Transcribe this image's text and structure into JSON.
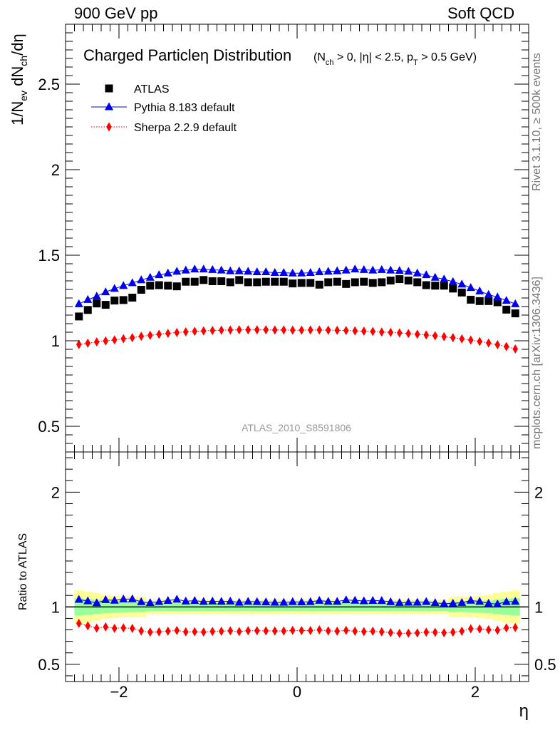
{
  "header": {
    "left": "900 GeV pp",
    "right": "Soft QCD"
  },
  "side_labels": {
    "rivet": "Rivet 3.1.10, ≥ 500k events",
    "source": "mcplots.cern.ch [arXiv:1306.3436]"
  },
  "colors": {
    "atlas": "#000000",
    "pythia": "#0000ee",
    "sherpa": "#ff0000",
    "band_inner": "#99ff99",
    "band_outer": "#ffff99",
    "watermark": "#999999"
  },
  "chart_data": {
    "type": "scatter",
    "title": "Charged Particleη Distribution",
    "subtitle_parts": [
      "(N",
      "ch",
      " > 0, |η| < 2.5, p",
      "T",
      " > 0.5 GeV)"
    ],
    "watermark": "ATLAS_2010_S8591806",
    "xlabel": "η",
    "ylabel_parts": [
      "1/N",
      "ev",
      " dN",
      "ch",
      "/dη"
    ],
    "ratio_ylabel": "Ratio to ATLAS",
    "xlim": [
      -2.6,
      2.6
    ],
    "ylim": [
      0.35,
      2.85
    ],
    "ratio_ylim": [
      0.35,
      2.35
    ],
    "x_ticks": [
      -2,
      0,
      2
    ],
    "x_tick_labels": [
      "−2",
      "0",
      "2"
    ],
    "y_ticks": [
      0.5,
      1,
      1.5,
      2,
      2.5
    ],
    "y_tick_labels": [
      "0.5",
      "1",
      "1.5",
      "2",
      "2.5"
    ],
    "ratio_ticks": [
      0.5,
      1,
      2
    ],
    "ratio_tick_labels": [
      "0.5",
      "1",
      "2"
    ],
    "x": [
      -2.45,
      -2.35,
      -2.25,
      -2.15,
      -2.05,
      -1.95,
      -1.85,
      -1.75,
      -1.65,
      -1.55,
      -1.45,
      -1.35,
      -1.25,
      -1.15,
      -1.05,
      -0.95,
      -0.85,
      -0.75,
      -0.65,
      -0.55,
      -0.45,
      -0.35,
      -0.25,
      -0.15,
      -0.05,
      0.05,
      0.15,
      0.25,
      0.35,
      0.45,
      0.55,
      0.65,
      0.75,
      0.85,
      0.95,
      1.05,
      1.15,
      1.25,
      1.35,
      1.45,
      1.55,
      1.65,
      1.75,
      1.85,
      1.95,
      2.05,
      2.15,
      2.25,
      2.35,
      2.45
    ],
    "series": [
      {
        "name": "ATLAS",
        "marker": "square",
        "values": [
          1.142,
          1.18,
          1.218,
          1.21,
          1.235,
          1.238,
          1.252,
          1.298,
          1.322,
          1.325,
          1.322,
          1.318,
          1.345,
          1.345,
          1.355,
          1.348,
          1.348,
          1.342,
          1.355,
          1.342,
          1.342,
          1.345,
          1.345,
          1.345,
          1.335,
          1.338,
          1.338,
          1.328,
          1.342,
          1.345,
          1.332,
          1.342,
          1.345,
          1.338,
          1.342,
          1.352,
          1.36,
          1.352,
          1.342,
          1.325,
          1.322,
          1.322,
          1.305,
          1.282,
          1.24,
          1.232,
          1.232,
          1.225,
          1.182,
          1.16
        ]
      },
      {
        "name": "Pythia 8.183 default",
        "marker": "triangle",
        "values": [
          1.215,
          1.24,
          1.26,
          1.285,
          1.305,
          1.322,
          1.338,
          1.355,
          1.37,
          1.385,
          1.395,
          1.405,
          1.412,
          1.418,
          1.418,
          1.415,
          1.412,
          1.408,
          1.408,
          1.405,
          1.402,
          1.402,
          1.398,
          1.398,
          1.395,
          1.395,
          1.398,
          1.402,
          1.405,
          1.408,
          1.412,
          1.418,
          1.415,
          1.412,
          1.415,
          1.412,
          1.41,
          1.405,
          1.395,
          1.385,
          1.37,
          1.36,
          1.345,
          1.33,
          1.31,
          1.29,
          1.27,
          1.255,
          1.235,
          1.215
        ]
      },
      {
        "name": "Sherpa 2.2.9 default",
        "marker": "diamond",
        "values": [
          0.978,
          0.986,
          0.993,
          0.999,
          1.005,
          1.012,
          1.018,
          1.026,
          1.032,
          1.038,
          1.043,
          1.048,
          1.052,
          1.055,
          1.058,
          1.06,
          1.062,
          1.063,
          1.064,
          1.064,
          1.064,
          1.064,
          1.063,
          1.063,
          1.062,
          1.062,
          1.063,
          1.063,
          1.062,
          1.061,
          1.06,
          1.058,
          1.056,
          1.054,
          1.051,
          1.049,
          1.046,
          1.042,
          1.038,
          1.034,
          1.029,
          1.024,
          1.018,
          1.011,
          1.004,
          0.996,
          0.987,
          0.977,
          0.966,
          0.952
        ]
      }
    ],
    "ratio_band_inner": [
      0.075,
      0.07,
      0.062,
      0.055,
      0.05,
      0.047,
      0.045,
      0.045,
      0.035,
      0.035,
      0.035,
      0.035,
      0.035,
      0.035,
      0.035,
      0.035,
      0.035,
      0.035,
      0.035,
      0.035,
      0.035,
      0.035,
      0.035,
      0.035,
      0.035,
      0.035,
      0.035,
      0.035,
      0.035,
      0.035,
      0.035,
      0.035,
      0.035,
      0.035,
      0.035,
      0.035,
      0.035,
      0.035,
      0.035,
      0.035,
      0.035,
      0.035,
      0.045,
      0.045,
      0.047,
      0.05,
      0.055,
      0.062,
      0.07,
      0.075
    ],
    "ratio_band_outer": [
      0.145,
      0.135,
      0.12,
      0.105,
      0.095,
      0.09,
      0.09,
      0.09,
      0.065,
      0.065,
      0.065,
      0.065,
      0.065,
      0.065,
      0.065,
      0.065,
      0.065,
      0.065,
      0.065,
      0.065,
      0.065,
      0.065,
      0.065,
      0.065,
      0.065,
      0.065,
      0.065,
      0.065,
      0.065,
      0.065,
      0.065,
      0.065,
      0.065,
      0.065,
      0.065,
      0.065,
      0.065,
      0.065,
      0.065,
      0.065,
      0.065,
      0.065,
      0.09,
      0.09,
      0.09,
      0.095,
      0.105,
      0.12,
      0.135,
      0.145
    ]
  }
}
